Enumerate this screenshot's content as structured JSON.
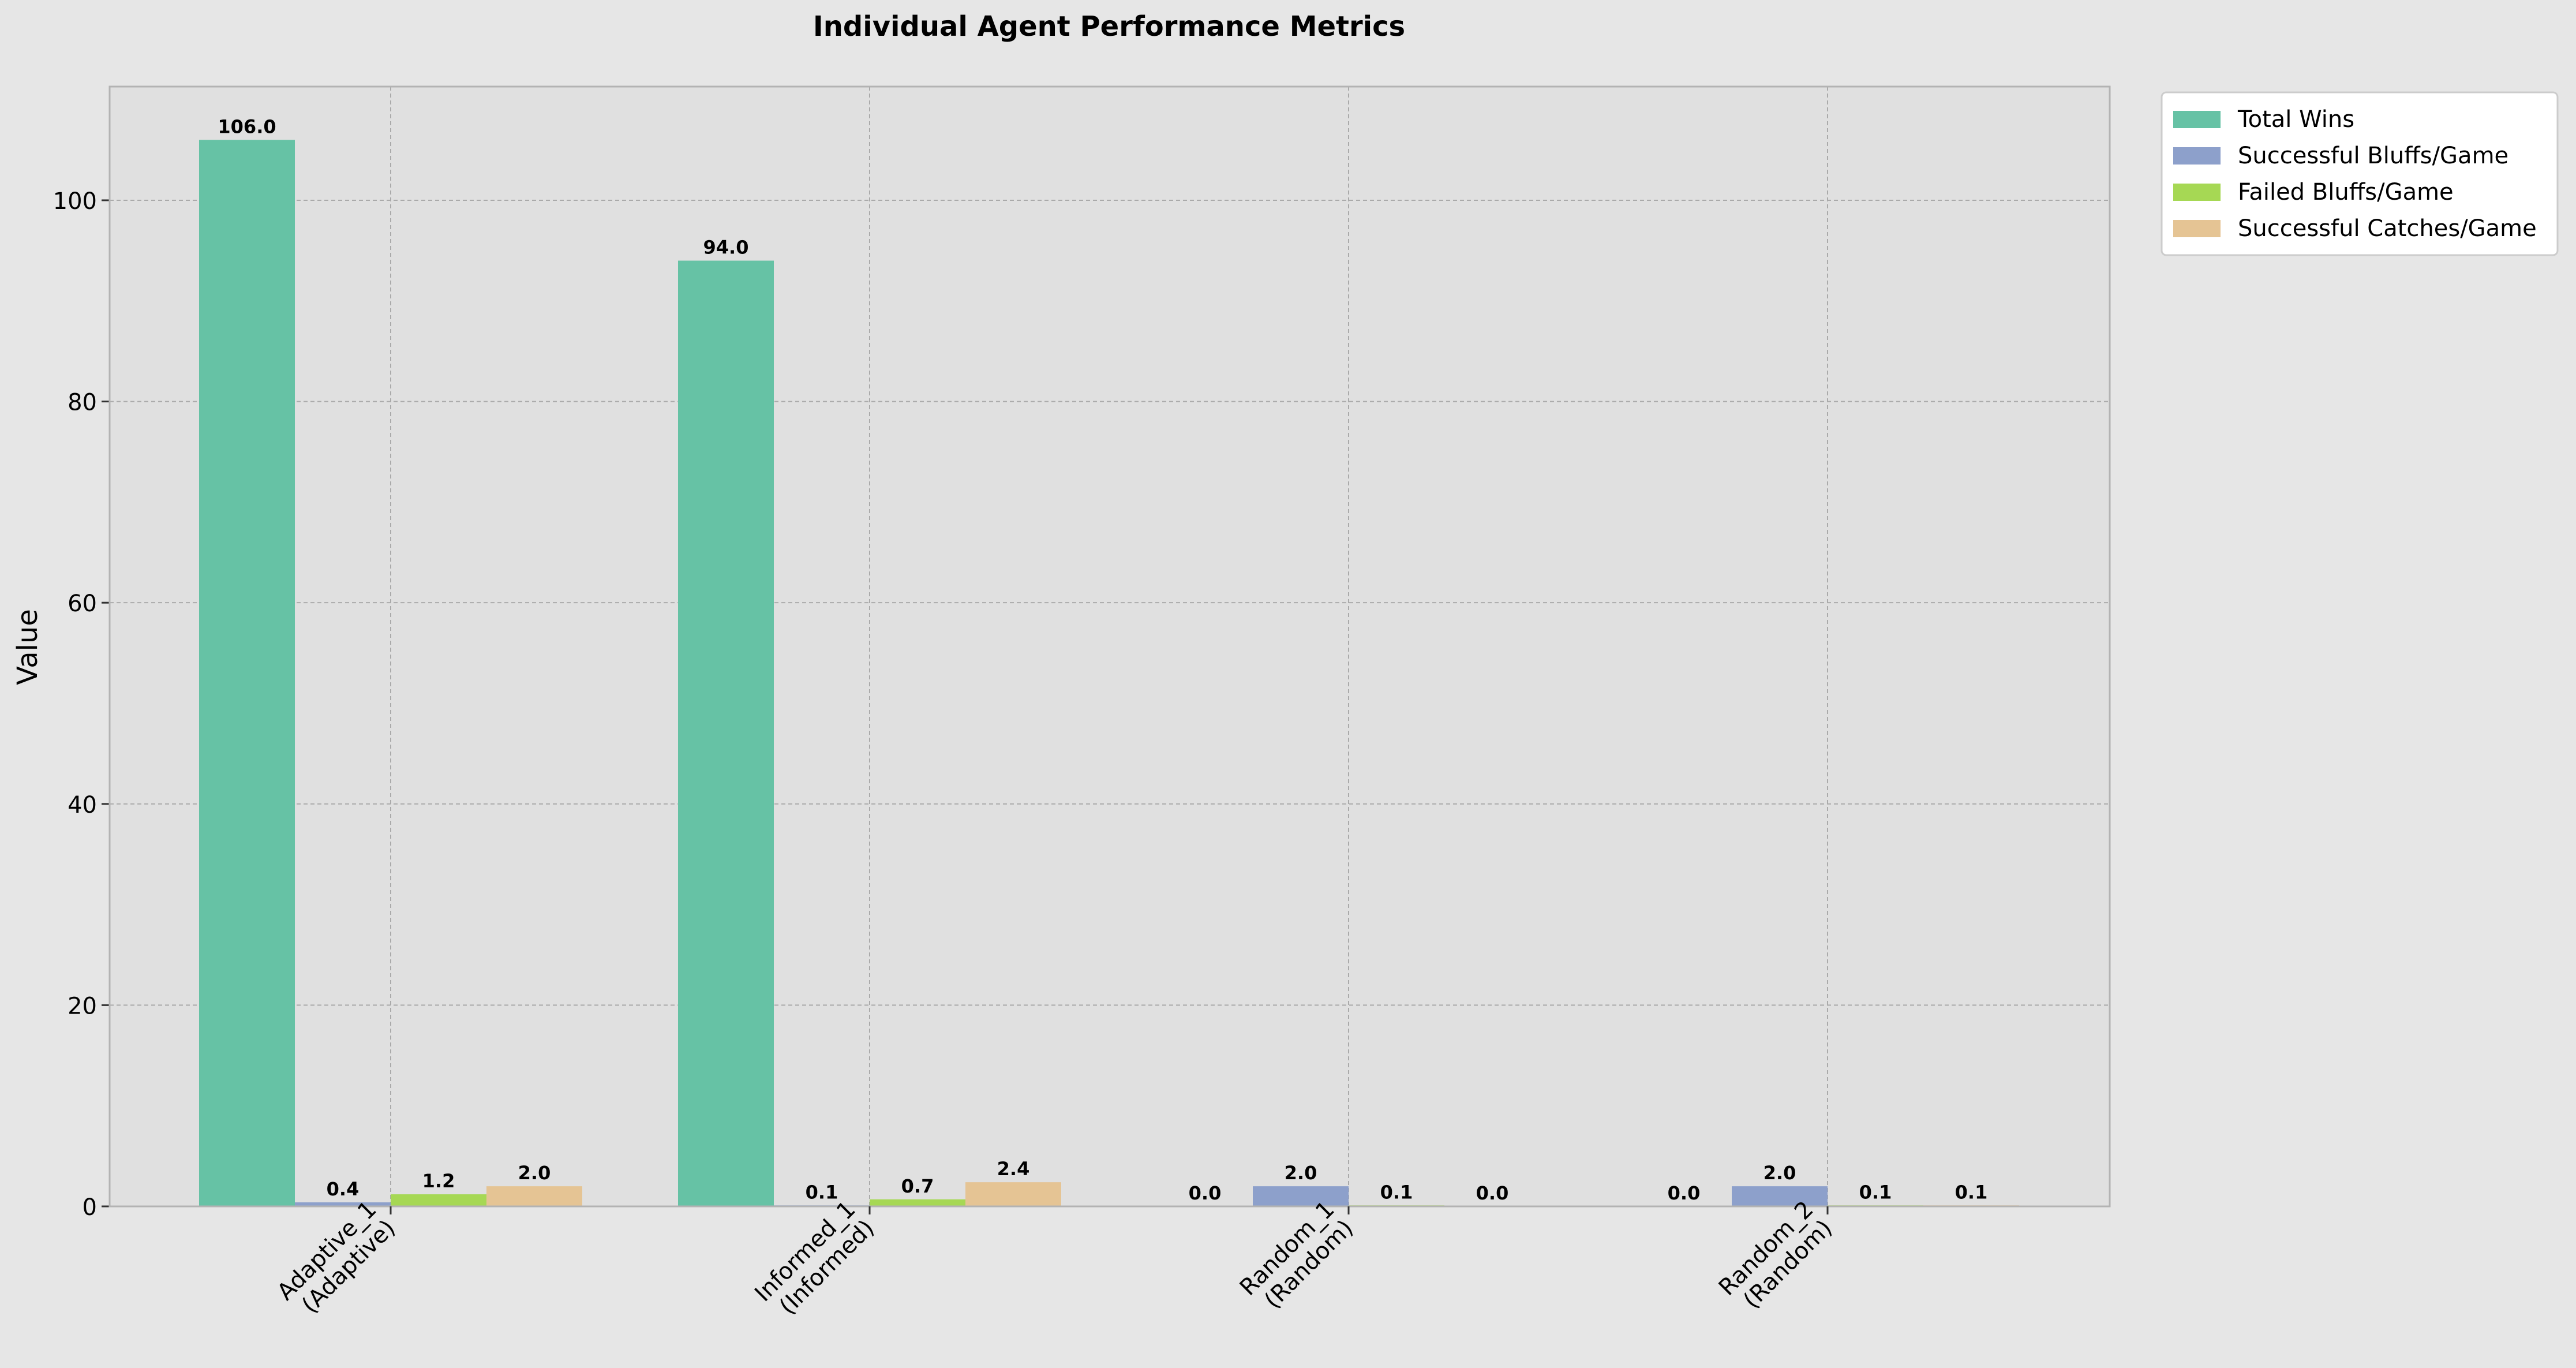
{
  "chart_data": {
    "type": "bar",
    "title": "Individual Agent Performance Metrics",
    "xlabel": "",
    "ylabel": "Value",
    "ylim": [
      0,
      111.3
    ],
    "yticks": [
      0,
      20,
      40,
      60,
      80,
      100
    ],
    "grid": true,
    "legend_position": "outside-top-right",
    "categories": [
      [
        "Adaptive_1",
        "(Adaptive)"
      ],
      [
        "Informed_1",
        "(Informed)"
      ],
      [
        "Random_1",
        "(Random)"
      ],
      [
        "Random_2",
        "(Random)"
      ]
    ],
    "series": [
      {
        "name": "Total Wins",
        "color": "#66c2a5",
        "values": [
          106.0,
          94.0,
          0.0,
          0.0
        ],
        "labels": [
          "106.0",
          "94.0",
          "0.0",
          "0.0"
        ]
      },
      {
        "name": "Successful Bluffs/Game",
        "color": "#8da0cb",
        "values": [
          0.4,
          0.1,
          2.0,
          2.0
        ],
        "labels": [
          "0.4",
          "0.1",
          "2.0",
          "2.0"
        ]
      },
      {
        "name": "Failed Bluffs/Game",
        "color": "#a6d854",
        "values": [
          1.2,
          0.7,
          0.1,
          0.1
        ],
        "labels": [
          "1.2",
          "0.7",
          "0.1",
          "0.1"
        ]
      },
      {
        "name": "Successful Catches/Game",
        "color": "#e5c494",
        "values": [
          2.0,
          2.4,
          0.0,
          0.1
        ],
        "labels": [
          "2.0",
          "2.4",
          "0.0",
          "0.1"
        ]
      }
    ],
    "colors": {
      "figure_background": "#e6e6e6",
      "plot_background": "#e0e0e0",
      "grid": "#aaaaaa",
      "axis_spine": "#b3b3b3"
    }
  }
}
